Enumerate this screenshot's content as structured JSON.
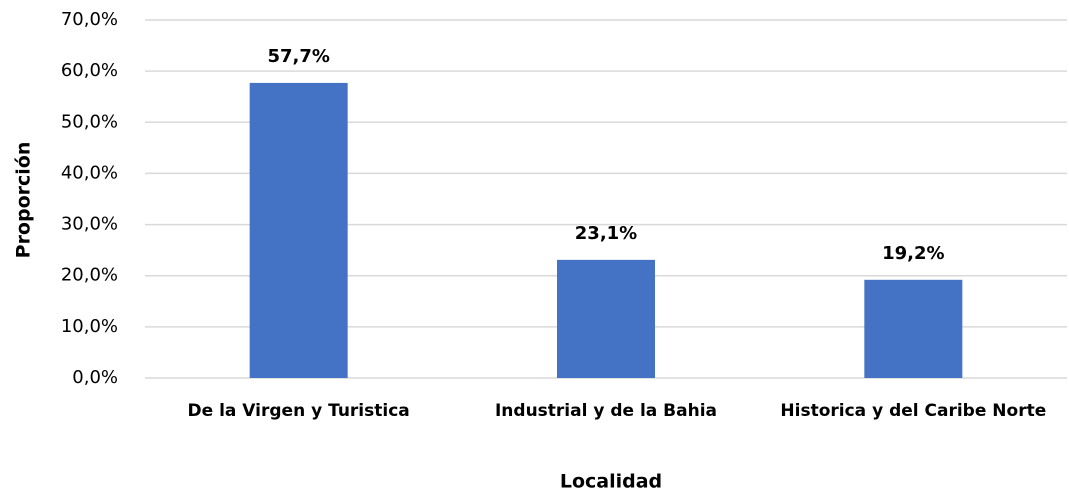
{
  "chart_data": {
    "type": "bar",
    "x_label": "Localidad",
    "y_label": "Proporción",
    "categories": [
      "De la Virgen y Turistica",
      "Industrial y de la Bahia",
      "Historica y del Caribe Norte"
    ],
    "values": [
      57.7,
      23.1,
      19.2
    ],
    "value_labels": [
      "57,7%",
      "23,1%",
      "19,2%"
    ],
    "color": "#4472c4",
    "ylim": [
      0,
      70
    ],
    "yticks": [
      {
        "value": 0,
        "label": "0,0%"
      },
      {
        "value": 10,
        "label": "10,0%"
      },
      {
        "value": 20,
        "label": "20,0%"
      },
      {
        "value": 30,
        "label": "30,0%"
      },
      {
        "value": 40,
        "label": "40,0%"
      },
      {
        "value": 50,
        "label": "50,0%"
      },
      {
        "value": 60,
        "label": "60,0%"
      },
      {
        "value": 70,
        "label": "70,0%"
      }
    ],
    "grid": true
  }
}
